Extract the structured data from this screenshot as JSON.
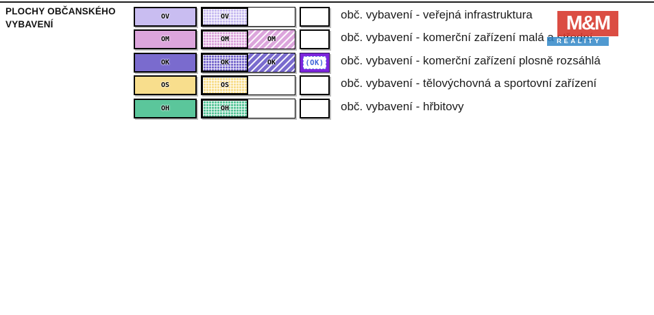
{
  "section": {
    "title_line1": "PLOCHY OBČANSKÉHO",
    "title_line2": "VYBAVENÍ"
  },
  "legend": {
    "rows": [
      {
        "code": "OV",
        "label": "obč. vybavení - veřejná infrastruktura",
        "color": "#c9bdf1",
        "patterns": [
          "solid",
          "grid",
          "blank"
        ]
      },
      {
        "code": "OM",
        "label": "obč. vybavení - komerční zařízení malá a střední",
        "color": "#dca5dc",
        "patterns": [
          "solid",
          "grid",
          "stripes",
          "blank"
        ]
      },
      {
        "code": "OK",
        "special_code": "(OK)",
        "label": "obč. vybavení - komerční zařízení plosně rozsáhlá",
        "color": "#7a6bce",
        "special_color": "#7d26dd",
        "special_text_color": "#3b63d8",
        "patterns": [
          "solid",
          "grid",
          "stripes",
          "outlined"
        ]
      },
      {
        "code": "OS",
        "label": "obč. vybavení - tělovýchovná a sportovní zařízení",
        "color": "#f8de8d",
        "patterns": [
          "solid",
          "grid",
          "blank"
        ]
      },
      {
        "code": "OH",
        "label": "obč. vybavení - hřbitovy",
        "color": "#5bc69b",
        "patterns": [
          "solid",
          "grid",
          "blank"
        ]
      }
    ]
  },
  "watermark": {
    "line1": "M&M",
    "line2": "REALITY",
    "red": "#d83a2f",
    "blue": "#2e86c7"
  }
}
